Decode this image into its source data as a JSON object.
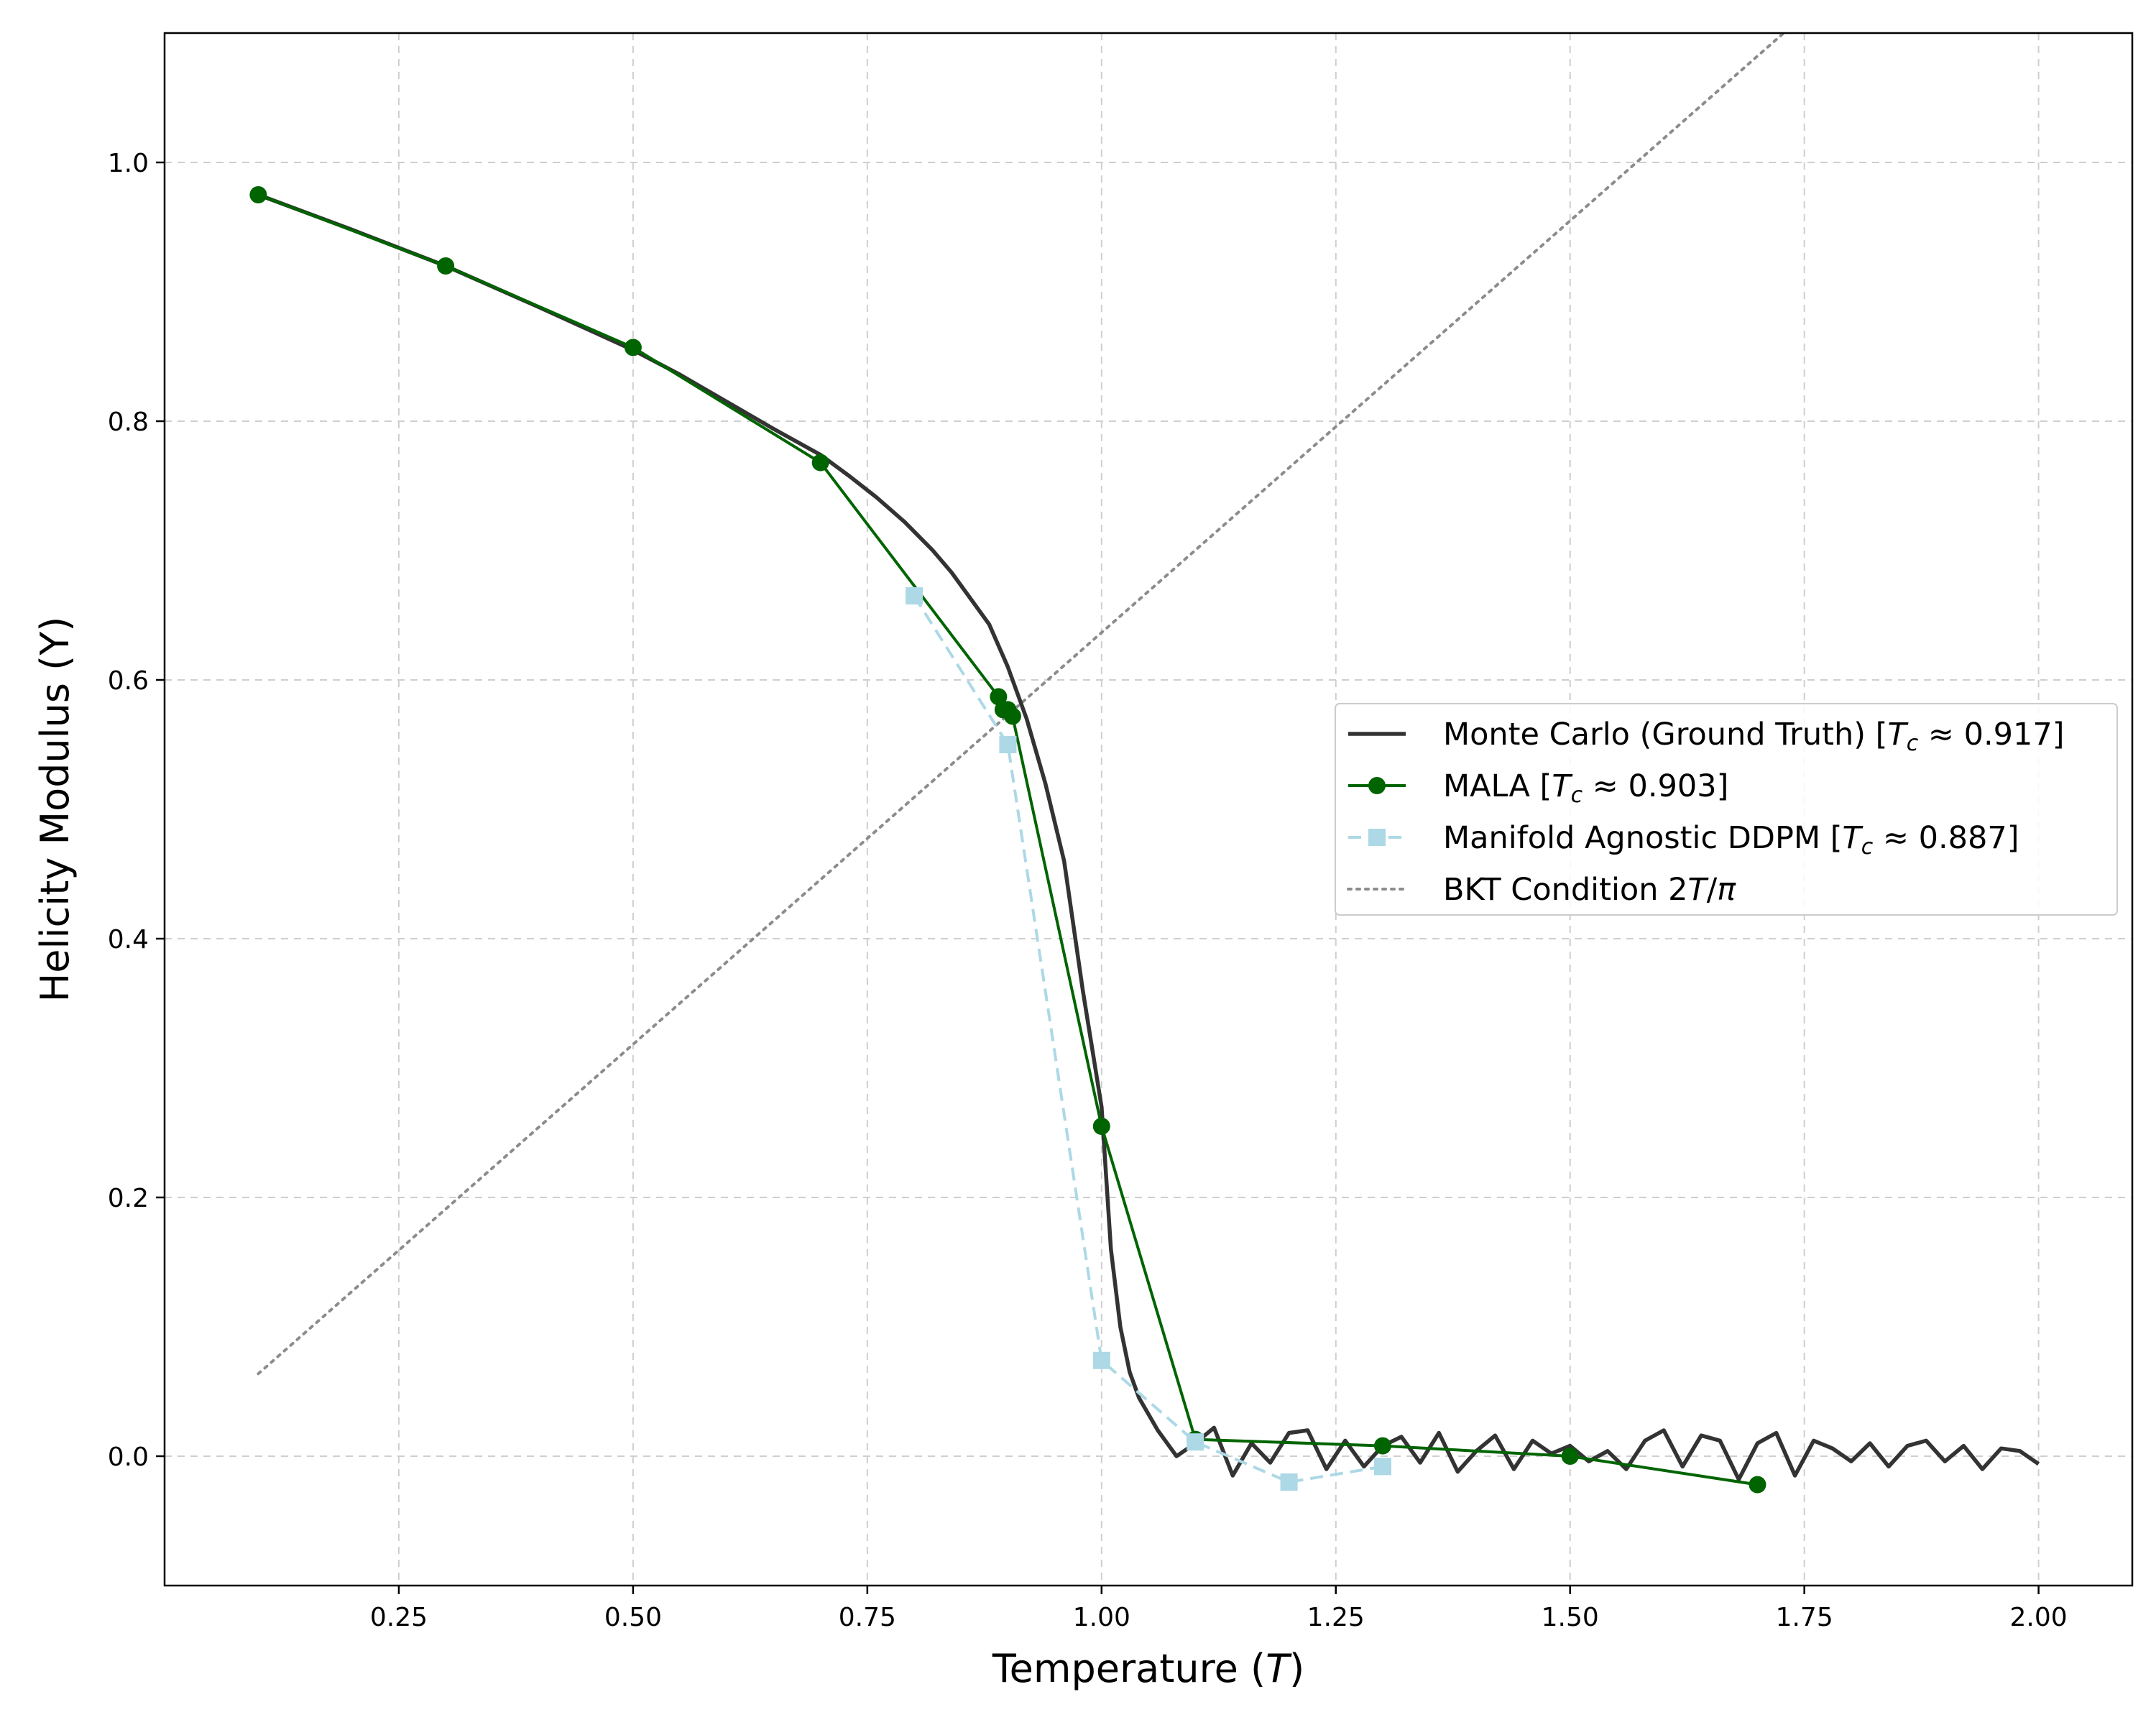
{
  "chart_data": {
    "type": "line",
    "title": "",
    "xlabel": "Temperature (T)",
    "ylabel": "Helicity Modulus (Υ)",
    "xlim": [
      0.0,
      2.1
    ],
    "ylim": [
      -0.1,
      1.1
    ],
    "xticks": [
      "0.25",
      "0.50",
      "0.75",
      "1.00",
      "1.25",
      "1.50",
      "1.75",
      "2.00"
    ],
    "yticks": [
      "0.0",
      "0.2",
      "0.4",
      "0.6",
      "0.8",
      "1.0"
    ],
    "grid": true,
    "legend_position": "center-right",
    "series": [
      {
        "name": "Monte Carlo (Ground Truth) [Tc ≈ 0.917]",
        "style": "solid",
        "marker": "none",
        "color": "#333333",
        "x": [
          0.1,
          0.2,
          0.3,
          0.4,
          0.5,
          0.55,
          0.6,
          0.65,
          0.7,
          0.73,
          0.76,
          0.79,
          0.82,
          0.84,
          0.86,
          0.88,
          0.9,
          0.92,
          0.94,
          0.96,
          0.98,
          1.0,
          1.01,
          1.02,
          1.03,
          1.04,
          1.06,
          1.08,
          1.1,
          1.12,
          1.14,
          1.16,
          1.18,
          1.2,
          1.22,
          1.24,
          1.26,
          1.28,
          1.3,
          1.32,
          1.34,
          1.36,
          1.38,
          1.4,
          1.42,
          1.44,
          1.46,
          1.48,
          1.5,
          1.52,
          1.54,
          1.56,
          1.58,
          1.6,
          1.62,
          1.64,
          1.66,
          1.68,
          1.7,
          1.72,
          1.74,
          1.76,
          1.78,
          1.8,
          1.82,
          1.84,
          1.86,
          1.88,
          1.9,
          1.92,
          1.94,
          1.96,
          1.98,
          2.0
        ],
        "y": [
          0.975,
          0.948,
          0.92,
          0.888,
          0.855,
          0.836,
          0.815,
          0.794,
          0.774,
          0.758,
          0.741,
          0.722,
          0.7,
          0.683,
          0.663,
          0.643,
          0.61,
          0.57,
          0.52,
          0.46,
          0.36,
          0.27,
          0.16,
          0.1,
          0.065,
          0.045,
          0.02,
          0.0,
          0.01,
          0.022,
          -0.015,
          0.01,
          -0.005,
          0.018,
          0.02,
          -0.01,
          0.012,
          -0.008,
          0.008,
          0.015,
          -0.005,
          0.018,
          -0.012,
          0.004,
          0.016,
          -0.01,
          0.012,
          0.002,
          0.008,
          -0.004,
          0.004,
          -0.01,
          0.012,
          0.02,
          -0.008,
          0.016,
          0.012,
          -0.018,
          0.01,
          0.018,
          -0.015,
          0.012,
          0.006,
          -0.004,
          0.01,
          -0.008,
          0.008,
          0.012,
          -0.004,
          0.008,
          -0.01,
          0.006,
          0.004,
          -0.006
        ]
      },
      {
        "name": "MALA [Tc ≈ 0.903]",
        "style": "solid",
        "marker": "circle",
        "color": "#006400",
        "x": [
          0.1,
          0.3,
          0.5,
          0.7,
          0.89,
          0.895,
          0.9,
          0.905,
          1.0,
          1.1,
          1.3,
          1.5,
          1.7
        ],
        "y": [
          0.975,
          0.92,
          0.857,
          0.768,
          0.587,
          0.577,
          0.577,
          0.572,
          0.255,
          0.013,
          0.008,
          0.0,
          -0.022
        ]
      },
      {
        "name": "Manifold Agnostic DDPM [Tc ≈ 0.887]",
        "style": "dashed",
        "marker": "square",
        "color": "#add8e6",
        "x": [
          0.8,
          0.9,
          1.0,
          1.1,
          1.2,
          1.3
        ],
        "y": [
          0.665,
          0.55,
          0.074,
          0.011,
          -0.02,
          -0.008
        ]
      },
      {
        "name": "BKT Condition 2T/π",
        "style": "dotted",
        "marker": "none",
        "color": "#8c8c8c",
        "formula": "2T/pi",
        "x": [
          0.1,
          1.8
        ],
        "y": [
          0.0637,
          1.1459
        ]
      }
    ]
  }
}
